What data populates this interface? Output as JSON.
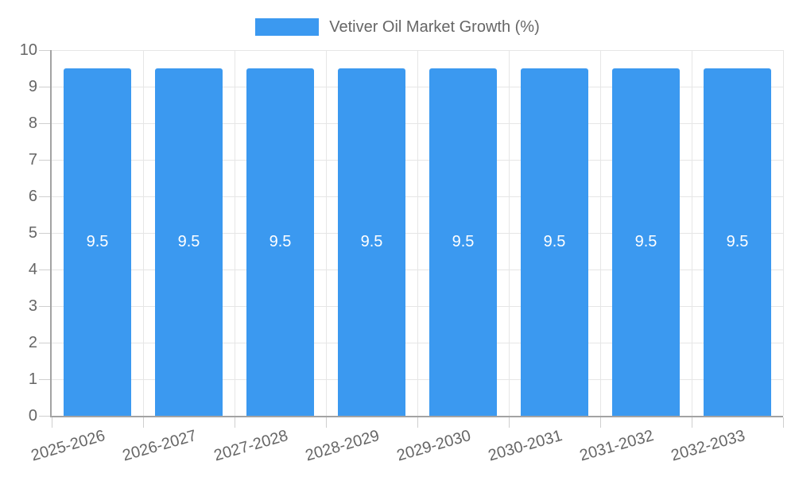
{
  "chart_data": {
    "type": "bar",
    "title": "Vetiver Oil Market Growth (%)",
    "categories": [
      "2025-2026",
      "2026-2027",
      "2027-2028",
      "2028-2029",
      "2029-2030",
      "2030-2031",
      "2031-2032",
      "2032-2033"
    ],
    "series": [
      {
        "name": "Vetiver Oil Market Growth (%)",
        "color": "#3B99F0",
        "values": [
          9.5,
          9.5,
          9.5,
          9.5,
          9.5,
          9.5,
          9.5,
          9.5
        ]
      }
    ],
    "data_labels": [
      "9.5",
      "9.5",
      "9.5",
      "9.5",
      "9.5",
      "9.5",
      "9.5",
      "9.5"
    ],
    "xlabel": "",
    "ylabel": "",
    "ylim": [
      0,
      10
    ],
    "yticks": [
      0,
      1,
      2,
      3,
      4,
      5,
      6,
      7,
      8,
      9,
      10
    ],
    "grid": true,
    "legend_position": "top",
    "colors": {
      "bar": "#3B99F0",
      "bar_label": "#ffffff",
      "axis_text": "#666666",
      "gridline": "#e6e6e6",
      "axis_line": "#a3a3a3",
      "tick": "#cfcfcf",
      "background": "#ffffff"
    }
  }
}
